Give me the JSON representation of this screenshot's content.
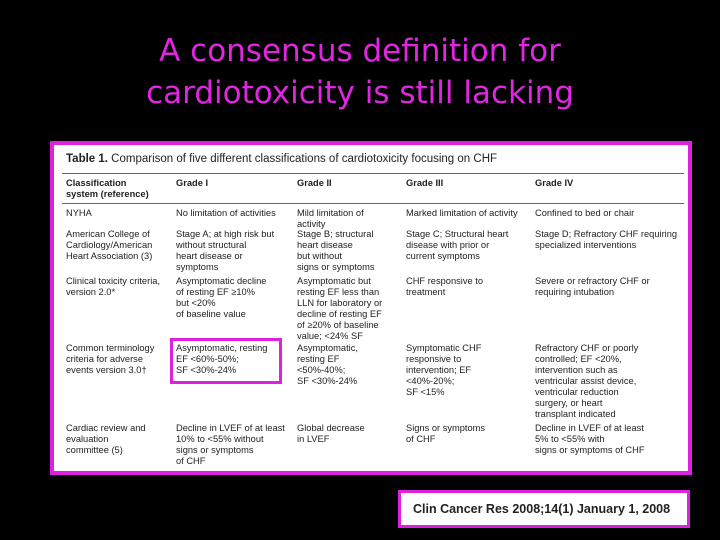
{
  "slide": {
    "title_line1": "A consensus definition for",
    "title_line2": "cardiotoxicity is still lacking"
  },
  "table": {
    "caption_label": "Table 1.",
    "caption_text": "Comparison of five different classifications of cardiotoxicity focusing on CHF",
    "headers": [
      "Classification\nsystem (reference)",
      "Grade I",
      "Grade II",
      "Grade III",
      "Grade IV"
    ],
    "rows": [
      [
        "NYHA",
        "No limitation of activities",
        "Mild limitation of\nactivity",
        "Marked limitation of activity",
        "Confined to bed or chair"
      ],
      [
        "American College of\nCardiology/American\nHeart Association (3)",
        "Stage A; at high risk but\nwithout structural\nheart disease or\nsymptoms",
        "Stage B; structural\nheart disease\nbut without\nsigns or symptoms",
        "Stage C; Structural heart\ndisease with prior or\ncurrent symptoms",
        "Stage D; Refractory CHF requiring\nspecialized interventions"
      ],
      [
        "Clinical toxicity criteria,\nversion 2.0*",
        "Asymptomatic decline\nof resting EF ≥10%\nbut <20%\nof baseline value",
        "Asymptomatic but\nresting EF less than\nLLN for laboratory or\ndecline of resting EF\nof ≥20% of baseline\nvalue; <24% SF",
        "CHF responsive to\ntreatment",
        "Severe or refractory CHF or\nrequiring intubation"
      ],
      [
        "Common terminology\ncriteria for adverse\nevents version 3.0†",
        "Asymptomatic, resting\nEF <60%-50%;\nSF <30%-24%",
        "Asymptomatic,\nresting EF\n<50%-40%;\nSF <30%-24%",
        "Symptomatic CHF\nresponsive to\nintervention; EF\n<40%-20%;\nSF <15%",
        "Refractory CHF or poorly\ncontrolled; EF <20%,\nintervention such as\nventricular assist device,\nventricular reduction\nsurgery, or heart\ntransplant indicated"
      ],
      [
        "Cardiac review and\nevaluation\ncommittee (5)",
        "Decline in LVEF of at least\n10% to <55% without\nsigns or symptoms\nof CHF",
        "Global decrease\nin LVEF",
        "Signs or symptoms\nof CHF",
        "Decline in LVEF of at least\n5% to <55% with\nsigns or symptoms of CHF"
      ]
    ]
  },
  "citation": {
    "text": "Clin Cancer Res 2008;14(1) January 1, 2008"
  },
  "colors": {
    "background": "#000000",
    "accent": "#e020e0"
  }
}
